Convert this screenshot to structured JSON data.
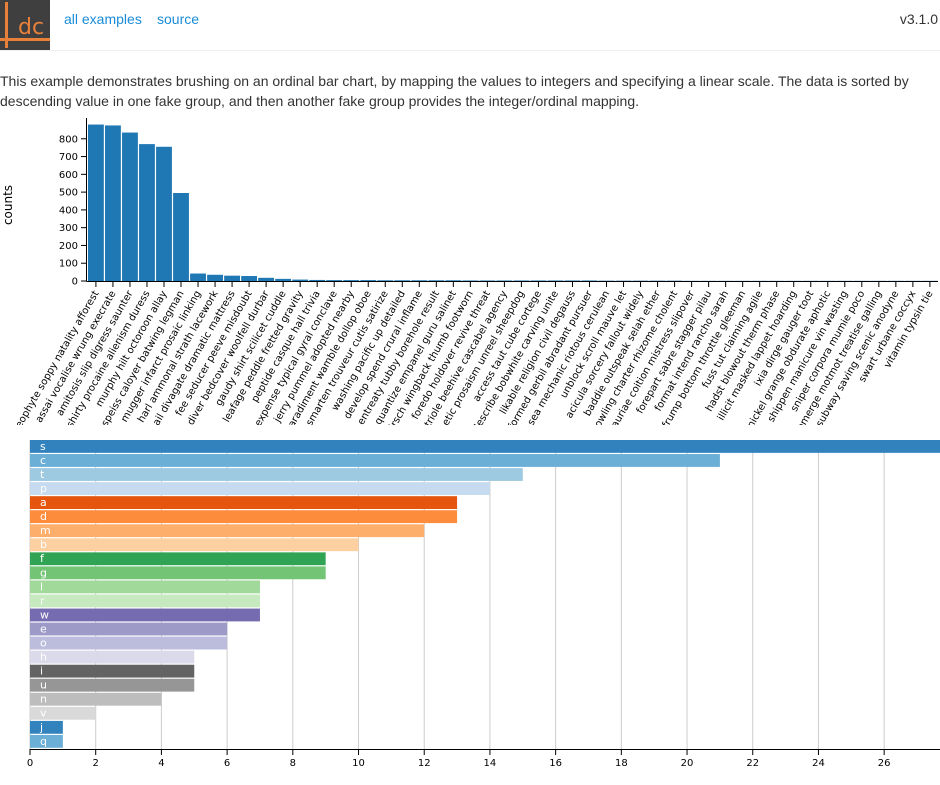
{
  "header": {
    "logo_text": "dc",
    "nav": {
      "all_examples": "all examples",
      "source": "source"
    },
    "version": "v3.1.0"
  },
  "intro_text": "This example demonstrates brushing on an ordinal bar chart, by mapping the values to integers and specifying a linear scale. The data is sorted by descending value in one fake group, and then another fake group provides the integer/ordinal mapping.",
  "colors": {
    "link": "#1a8cd8",
    "bar": "#1f77b4"
  },
  "chart_data": [
    {
      "type": "bar",
      "title": "",
      "xlabel": "",
      "ylabel": "counts",
      "ylim": [
        0,
        900
      ],
      "yticks": [
        0,
        100,
        200,
        300,
        400,
        500,
        600,
        700,
        800
      ],
      "grid": false,
      "categories": [
        "neophyte soppy natality afforest",
        "assai vocalise wrung execrate",
        "amitosis slip digress saunter",
        "shirty procaine alienism duress",
        "murphy hilt octoroon allay",
        "speiss caloyer batwing legman",
        "mugger infarct prosaic linking",
        "harl ammonal strath lacework",
        "ail divagate dramatic mattress",
        "fee seducer peeve misdoubt",
        "diver bedcover woolfell durbar",
        "gaudy shirt scilicet cuddle",
        "leafage peddle fretted gravity",
        "peptide casque hall trivia",
        "expense typical gyral conclave",
        "jerry pummel adopted nearby",
        "paradiment wamble dollop oboe",
        "smarten trouveur cutis satirize",
        "washing pacific up detailed",
        "develop spend crural inflame",
        "entreaty tubby borehole result",
        "quantize empanel guru salinet",
        "chirsch wingback thumb footworn",
        "foredo holdover revive threat",
        "triole beehive cascabel agency",
        "pathetic prosaism unreel sheepdog",
        "access taut cube cortege",
        "describe bobwhite carving unite",
        "likable religion civil degauss",
        "formed gerbil abradant pursuer",
        "sea mechanic riotous cerulean",
        "unblock scroll mauve let",
        "acicula sorcery fallout widely",
        "baddie outspeak selah ether",
        "rowling charter rhizome cholent",
        "auriae coition mistress slipover",
        "forepart sabre stagger pilau",
        "format intend rancho sarah",
        "frump bottom throttle gleeman",
        "fuss tut claiming agile",
        "hadst blowout therm phase",
        "illicit masked lappet hoarding",
        "ixia dirge gauger toot",
        "nickel grange obdurate aphotic",
        "shippen manicure vin wasting",
        "sniper corpora mumie poco",
        "emerge motmot treatise galling",
        "subway saving scenic anodyne",
        "swart urbane coccyx",
        "vitamin typsin tie"
      ],
      "values": [
        880,
        875,
        835,
        770,
        755,
        495,
        42,
        35,
        30,
        28,
        18,
        12,
        8,
        6,
        5,
        5,
        5,
        4,
        4,
        4,
        4,
        4,
        3,
        3,
        3,
        3,
        3,
        3,
        3,
        3,
        2,
        2,
        2,
        2,
        2,
        1,
        1,
        1,
        1,
        1,
        1,
        1,
        1,
        1,
        1,
        1,
        1,
        1,
        1,
        1
      ]
    },
    {
      "type": "bar",
      "orientation": "horizontal",
      "title": "",
      "xlabel": "",
      "ylabel": "",
      "xlim": [
        0,
        27.7
      ],
      "xticks": [
        0,
        2,
        4,
        6,
        8,
        10,
        12,
        14,
        16,
        18,
        20,
        22,
        24,
        26
      ],
      "grid": true,
      "categories": [
        "s",
        "c",
        "t",
        "p",
        "a",
        "d",
        "m",
        "b",
        "f",
        "g",
        "l",
        "r",
        "w",
        "e",
        "o",
        "h",
        "i",
        "u",
        "n",
        "v",
        "j",
        "q"
      ],
      "values": [
        28,
        21,
        15,
        14,
        13,
        13,
        12,
        10,
        9,
        9,
        7,
        7,
        7,
        6,
        6,
        5,
        5,
        5,
        4,
        2,
        1,
        1
      ],
      "colors": [
        "#3182bd",
        "#6baed6",
        "#9ecae1",
        "#c6dbef",
        "#e6550d",
        "#fd8d3c",
        "#fdae6b",
        "#fdd0a2",
        "#31a354",
        "#74c476",
        "#a1d99b",
        "#c7e9c0",
        "#756bb1",
        "#9e9ac8",
        "#bcbddc",
        "#dadaeb",
        "#636363",
        "#969696",
        "#bdbdbd",
        "#d9d9d9",
        "#3182bd",
        "#6baed6"
      ]
    }
  ]
}
